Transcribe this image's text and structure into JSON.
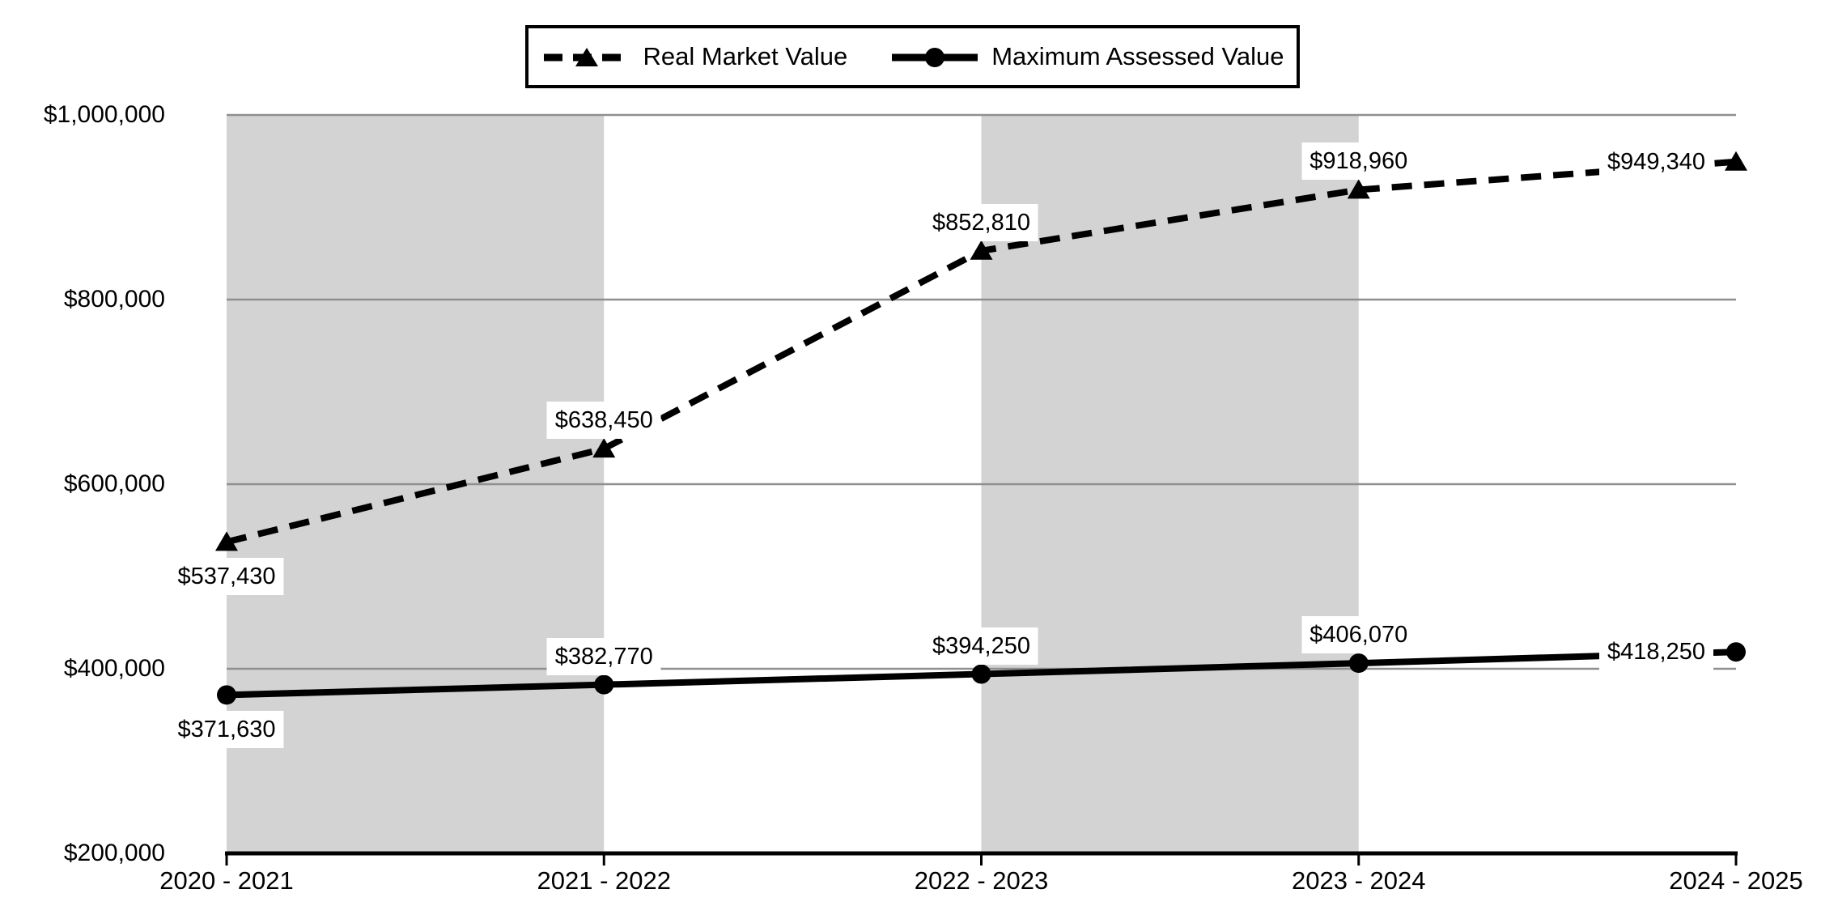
{
  "page": {
    "background": "#ffffff"
  },
  "legend": {
    "items": [
      {
        "label": "Real Market Value",
        "line_style": "dashed",
        "marker": "triangle"
      },
      {
        "label": "Maximum Assessed Value",
        "line_style": "solid",
        "marker": "circle"
      }
    ]
  },
  "chart_data": {
    "type": "line",
    "title": "",
    "categories": [
      "2020 - 2021",
      "2021 - 2022",
      "2022 - 2023",
      "2023 - 2024",
      "2024 - 2025"
    ],
    "series": [
      {
        "name": "Real Market Value",
        "values": [
          537430,
          638450,
          852810,
          918960,
          949340
        ],
        "labels": [
          "$537,430",
          "$638,450",
          "$852,810",
          "$918,960",
          "$949,340"
        ],
        "label_positions": [
          "below",
          "above",
          "above",
          "above",
          "left"
        ],
        "line_style": "dashed",
        "marker": "triangle"
      },
      {
        "name": "Maximum Assessed Value",
        "values": [
          371630,
          382770,
          394250,
          406070,
          418250
        ],
        "labels": [
          "$371,630",
          "$382,770",
          "$394,250",
          "$406,070",
          "$418,250"
        ],
        "label_positions": [
          "below",
          "above",
          "above",
          "above",
          "left"
        ],
        "line_style": "solid",
        "marker": "circle"
      }
    ],
    "y_axis": {
      "min": 200000,
      "max": 1000000,
      "ticks": [
        200000,
        400000,
        600000,
        800000,
        1000000
      ],
      "tick_labels": [
        "$200,000",
        "$400,000",
        "$600,000",
        "$800,000",
        "$1,000,000"
      ]
    },
    "x_axis": {
      "tick_labels": [
        "2020 - 2021",
        "2021 - 2022",
        "2022 - 2023",
        "2023 - 2024",
        "2024 - 2025"
      ]
    },
    "grid": "horizontal",
    "legend_position": "top-center",
    "plot_shading": {
      "shaded_intervals": [
        [
          0,
          1
        ],
        [
          2,
          3
        ]
      ],
      "color": "#d3d3d3"
    },
    "colors": {
      "line": "#000000",
      "grid": "#8f8f8f",
      "band": "#d3d3d3",
      "axis": "#000000",
      "background": "#ffffff",
      "label_bg": "#ffffff"
    }
  }
}
